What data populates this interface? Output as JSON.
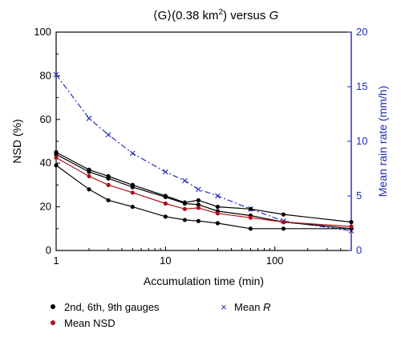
{
  "chart_data": {
    "type": "line",
    "title_parts": {
      "lhs": "⟨G⟩(0.38 km",
      "sup": "2",
      "rhs": ")",
      "mid": " versus ",
      "var": "G"
    },
    "xlabel": "Accumulation time (min)",
    "ylabel_left": "NSD (%)",
    "ylabel_right": "Mean rain rate (mm/h)",
    "x_scale": "log",
    "xlim": [
      1,
      500
    ],
    "ylim_left": [
      0,
      100
    ],
    "ylim_right": [
      0,
      20
    ],
    "x_ticks": [
      1,
      10,
      100
    ],
    "x_tick_labels": [
      "1",
      "10",
      "100"
    ],
    "y_ticks_left": [
      0,
      20,
      40,
      60,
      80,
      100
    ],
    "y_ticks_right": [
      0,
      5,
      10,
      15,
      20
    ],
    "gauge_series": [
      {
        "x": [
          1,
          2,
          3,
          5,
          10,
          15,
          20,
          30,
          60,
          120,
          500
        ],
        "y": [
          45,
          37,
          34,
          30,
          25,
          22,
          23,
          20,
          19,
          16.5,
          13
        ]
      },
      {
        "x": [
          1,
          2,
          3,
          5,
          10,
          15,
          20,
          30,
          60,
          120,
          500
        ],
        "y": [
          44,
          36,
          33,
          29,
          24.5,
          21.5,
          21,
          18,
          16,
          13,
          10
        ]
      },
      {
        "x": [
          1,
          2,
          3,
          5,
          10,
          15,
          20,
          30,
          60,
          120,
          500
        ],
        "y": [
          39,
          28,
          23,
          20,
          15.5,
          14,
          13.5,
          12.5,
          10,
          10,
          10
        ]
      }
    ],
    "mean_nsd": {
      "name": "Mean NSD",
      "x": [
        1,
        2,
        3,
        5,
        10,
        15,
        20,
        30,
        60,
        120,
        500
      ],
      "y": [
        42.5,
        34,
        30,
        26.5,
        21.5,
        19,
        19.5,
        17,
        15,
        13,
        11
      ]
    },
    "mean_r": {
      "name_prefix": "Mean ",
      "name_var": "R",
      "x": [
        1,
        2,
        3,
        5,
        10,
        15,
        20,
        30,
        60,
        120,
        500
      ],
      "y": [
        16.1,
        12.1,
        10.6,
        8.9,
        7.2,
        6.4,
        5.6,
        5.0,
        3.8,
        2.7,
        1.8
      ]
    },
    "legend": {
      "gauges_label": "2nd, 6th, 9th gauges",
      "mean_nsd_label": "Mean NSD",
      "position": "bottom"
    },
    "colors": {
      "gauges": "#000000",
      "mean_nsd": "#b0101a",
      "mean_r": "#1f2bbf",
      "right_axis": "#1f2bbf"
    }
  }
}
